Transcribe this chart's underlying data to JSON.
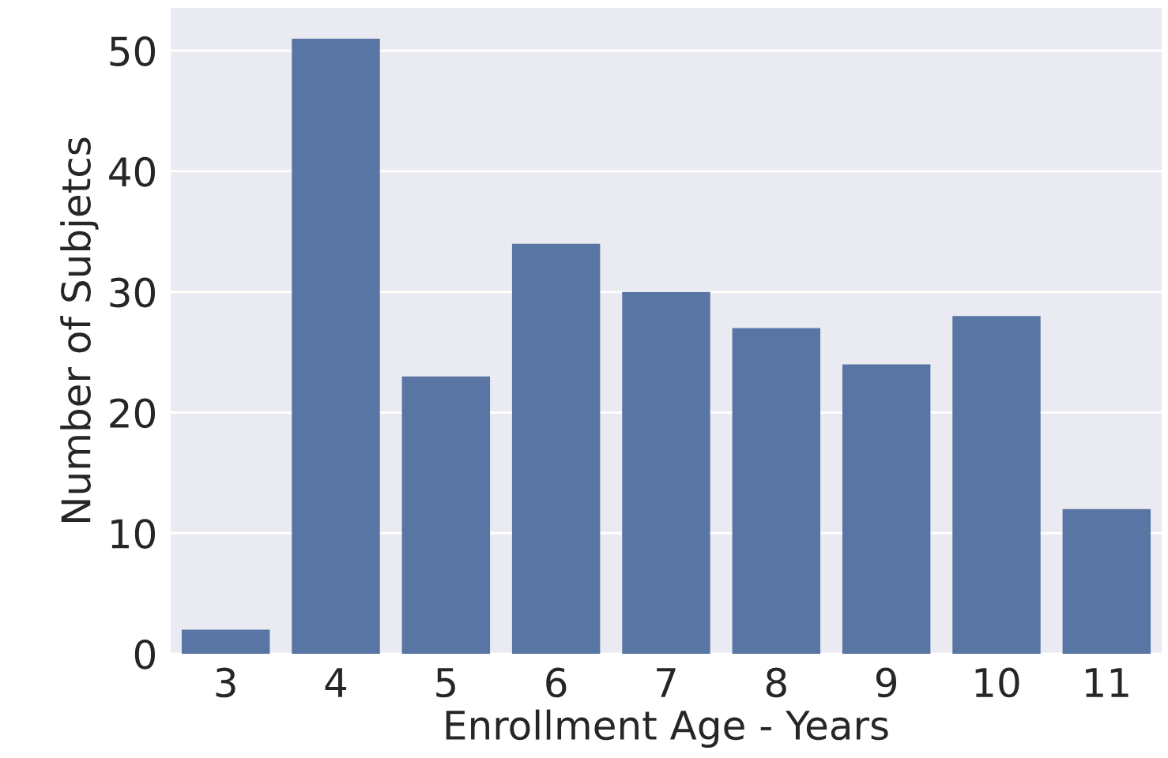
{
  "chart_data": {
    "type": "bar",
    "xlabel": "Enrollment Age - Years",
    "ylabel": "Number of Subjetcs",
    "categories": [
      "3",
      "4",
      "5",
      "6",
      "7",
      "8",
      "9",
      "10",
      "11"
    ],
    "values": [
      2,
      51,
      23,
      34,
      30,
      27,
      24,
      28,
      12
    ],
    "color": "#5975a4",
    "ylim": [
      0,
      53.55
    ],
    "yticks": [
      0,
      10,
      20,
      30,
      40,
      50
    ],
    "grid": "y"
  }
}
